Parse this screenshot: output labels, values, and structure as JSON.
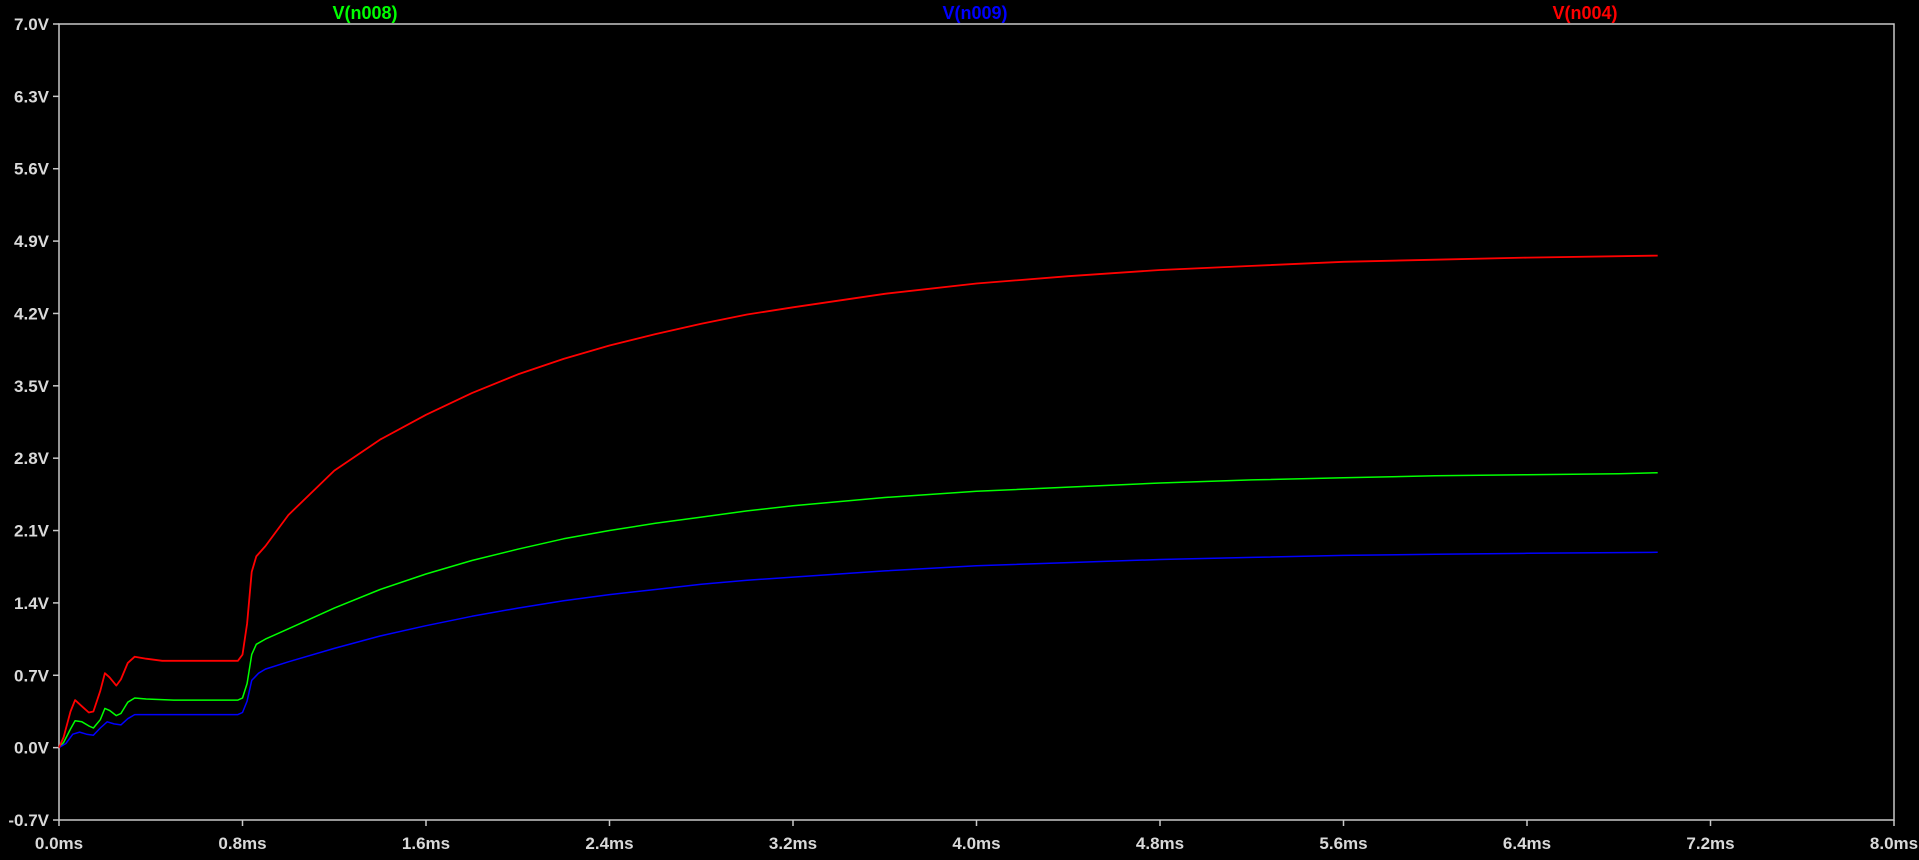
{
  "chart_data": {
    "type": "line",
    "title": "",
    "xlabel": "",
    "ylabel": "",
    "x_unit": "ms",
    "y_unit": "V",
    "xlim": [
      0.0,
      8.0
    ],
    "ylim": [
      -0.7,
      7.0
    ],
    "grid": false,
    "legend_placement": "top",
    "background": "#000000",
    "frame_color": "#c8c8c8",
    "x_ticks": [
      "0.0ms",
      "0.8ms",
      "1.6ms",
      "2.4ms",
      "3.2ms",
      "4.0ms",
      "4.8ms",
      "5.6ms",
      "6.4ms",
      "7.2ms",
      "8.0ms"
    ],
    "x_tick_values": [
      0.0,
      0.8,
      1.6,
      2.4,
      3.2,
      4.0,
      4.8,
      5.6,
      6.4,
      7.2,
      8.0
    ],
    "y_ticks": [
      "7.0V",
      "6.3V",
      "5.6V",
      "4.9V",
      "4.2V",
      "3.5V",
      "2.8V",
      "2.1V",
      "1.4V",
      "0.7V",
      "0.0V",
      "-0.7V"
    ],
    "y_tick_values": [
      7.0,
      6.3,
      5.6,
      4.9,
      4.2,
      3.5,
      2.8,
      2.1,
      1.4,
      0.7,
      0.0,
      -0.7
    ],
    "series": [
      {
        "name": "V(n008)",
        "color": "#00ff00",
        "points": [
          [
            0.0,
            0.0
          ],
          [
            0.02,
            0.05
          ],
          [
            0.05,
            0.18
          ],
          [
            0.07,
            0.26
          ],
          [
            0.1,
            0.25
          ],
          [
            0.13,
            0.21
          ],
          [
            0.15,
            0.19
          ],
          [
            0.18,
            0.27
          ],
          [
            0.2,
            0.38
          ],
          [
            0.22,
            0.36
          ],
          [
            0.25,
            0.31
          ],
          [
            0.27,
            0.33
          ],
          [
            0.3,
            0.44
          ],
          [
            0.33,
            0.48
          ],
          [
            0.38,
            0.47
          ],
          [
            0.5,
            0.46
          ],
          [
            0.6,
            0.46
          ],
          [
            0.7,
            0.46
          ],
          [
            0.78,
            0.46
          ],
          [
            0.8,
            0.48
          ],
          [
            0.82,
            0.62
          ],
          [
            0.84,
            0.9
          ],
          [
            0.86,
            1.0
          ],
          [
            0.9,
            1.05
          ],
          [
            1.0,
            1.15
          ],
          [
            1.2,
            1.35
          ],
          [
            1.4,
            1.53
          ],
          [
            1.6,
            1.68
          ],
          [
            1.8,
            1.81
          ],
          [
            2.0,
            1.92
          ],
          [
            2.2,
            2.02
          ],
          [
            2.4,
            2.1
          ],
          [
            2.6,
            2.17
          ],
          [
            2.8,
            2.23
          ],
          [
            3.0,
            2.29
          ],
          [
            3.2,
            2.34
          ],
          [
            3.6,
            2.42
          ],
          [
            4.0,
            2.48
          ],
          [
            4.4,
            2.52
          ],
          [
            4.8,
            2.56
          ],
          [
            5.2,
            2.59
          ],
          [
            5.6,
            2.61
          ],
          [
            6.0,
            2.63
          ],
          [
            6.4,
            2.64
          ],
          [
            6.8,
            2.65
          ],
          [
            6.97,
            2.66
          ]
        ]
      },
      {
        "name": "V(n009)",
        "color": "#0000ff",
        "points": [
          [
            0.0,
            0.0
          ],
          [
            0.03,
            0.04
          ],
          [
            0.06,
            0.13
          ],
          [
            0.09,
            0.15
          ],
          [
            0.12,
            0.13
          ],
          [
            0.15,
            0.12
          ],
          [
            0.18,
            0.19
          ],
          [
            0.21,
            0.25
          ],
          [
            0.24,
            0.23
          ],
          [
            0.27,
            0.22
          ],
          [
            0.3,
            0.28
          ],
          [
            0.33,
            0.32
          ],
          [
            0.4,
            0.32
          ],
          [
            0.55,
            0.32
          ],
          [
            0.7,
            0.32
          ],
          [
            0.78,
            0.32
          ],
          [
            0.8,
            0.34
          ],
          [
            0.82,
            0.45
          ],
          [
            0.84,
            0.65
          ],
          [
            0.87,
            0.72
          ],
          [
            0.9,
            0.76
          ],
          [
            1.0,
            0.83
          ],
          [
            1.2,
            0.96
          ],
          [
            1.4,
            1.08
          ],
          [
            1.6,
            1.18
          ],
          [
            1.8,
            1.27
          ],
          [
            2.0,
            1.35
          ],
          [
            2.2,
            1.42
          ],
          [
            2.4,
            1.48
          ],
          [
            2.6,
            1.53
          ],
          [
            2.8,
            1.58
          ],
          [
            3.0,
            1.62
          ],
          [
            3.2,
            1.65
          ],
          [
            3.6,
            1.71
          ],
          [
            4.0,
            1.76
          ],
          [
            4.4,
            1.79
          ],
          [
            4.8,
            1.82
          ],
          [
            5.2,
            1.84
          ],
          [
            5.6,
            1.86
          ],
          [
            6.0,
            1.87
          ],
          [
            6.4,
            1.88
          ],
          [
            6.97,
            1.89
          ]
        ]
      },
      {
        "name": "V(n004)",
        "color": "#ff0000",
        "points": [
          [
            0.0,
            0.0
          ],
          [
            0.02,
            0.1
          ],
          [
            0.05,
            0.35
          ],
          [
            0.07,
            0.46
          ],
          [
            0.1,
            0.4
          ],
          [
            0.13,
            0.34
          ],
          [
            0.15,
            0.35
          ],
          [
            0.18,
            0.55
          ],
          [
            0.2,
            0.72
          ],
          [
            0.22,
            0.68
          ],
          [
            0.25,
            0.6
          ],
          [
            0.27,
            0.66
          ],
          [
            0.3,
            0.82
          ],
          [
            0.33,
            0.88
          ],
          [
            0.38,
            0.86
          ],
          [
            0.45,
            0.84
          ],
          [
            0.55,
            0.84
          ],
          [
            0.65,
            0.84
          ],
          [
            0.78,
            0.84
          ],
          [
            0.8,
            0.9
          ],
          [
            0.82,
            1.2
          ],
          [
            0.84,
            1.7
          ],
          [
            0.86,
            1.85
          ],
          [
            0.9,
            1.95
          ],
          [
            1.0,
            2.25
          ],
          [
            1.2,
            2.68
          ],
          [
            1.4,
            2.98
          ],
          [
            1.6,
            3.22
          ],
          [
            1.8,
            3.43
          ],
          [
            2.0,
            3.61
          ],
          [
            2.2,
            3.76
          ],
          [
            2.4,
            3.89
          ],
          [
            2.6,
            4.0
          ],
          [
            2.8,
            4.1
          ],
          [
            3.0,
            4.19
          ],
          [
            3.2,
            4.26
          ],
          [
            3.6,
            4.39
          ],
          [
            4.0,
            4.49
          ],
          [
            4.4,
            4.56
          ],
          [
            4.8,
            4.62
          ],
          [
            5.2,
            4.66
          ],
          [
            5.6,
            4.7
          ],
          [
            6.0,
            4.72
          ],
          [
            6.4,
            4.74
          ],
          [
            6.97,
            4.76
          ]
        ]
      }
    ]
  }
}
